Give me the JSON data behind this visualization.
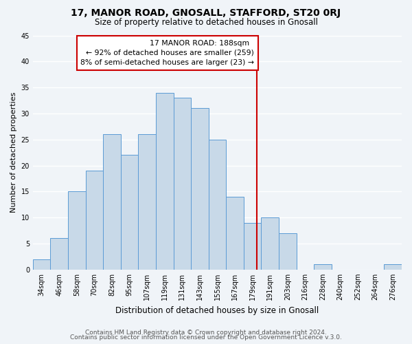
{
  "title": "17, MANOR ROAD, GNOSALL, STAFFORD, ST20 0RJ",
  "subtitle": "Size of property relative to detached houses in Gnosall",
  "xlabel": "Distribution of detached houses by size in Gnosall",
  "ylabel": "Number of detached properties",
  "footer_lines": [
    "Contains HM Land Registry data © Crown copyright and database right 2024.",
    "Contains public sector information licensed under the Open Government Licence v.3.0."
  ],
  "bin_labels": [
    "34sqm",
    "46sqm",
    "58sqm",
    "70sqm",
    "82sqm",
    "95sqm",
    "107sqm",
    "119sqm",
    "131sqm",
    "143sqm",
    "155sqm",
    "167sqm",
    "179sqm",
    "191sqm",
    "203sqm",
    "216sqm",
    "228sqm",
    "240sqm",
    "252sqm",
    "264sqm",
    "276sqm"
  ],
  "bar_heights": [
    2,
    6,
    15,
    19,
    26,
    22,
    26,
    34,
    33,
    31,
    25,
    14,
    9,
    10,
    7,
    0,
    1,
    0,
    0,
    0,
    1
  ],
  "bar_color": "#c8d9e8",
  "bar_edge_color": "#5b9bd5",
  "ylim": [
    0,
    45
  ],
  "yticks": [
    0,
    5,
    10,
    15,
    20,
    25,
    30,
    35,
    40,
    45
  ],
  "annotation_title": "17 MANOR ROAD: 188sqm",
  "annotation_line1": "← 92% of detached houses are smaller (259)",
  "annotation_line2": "8% of semi-detached houses are larger (23) →",
  "line_color": "#cc0000",
  "background_color": "#f0f4f8",
  "grid_color": "#ffffff",
  "title_fontsize": 10,
  "subtitle_fontsize": 8.5,
  "ylabel_fontsize": 8,
  "xlabel_fontsize": 8.5,
  "tick_fontsize": 7,
  "annotation_fontsize": 7.8,
  "footer_fontsize": 6.5
}
